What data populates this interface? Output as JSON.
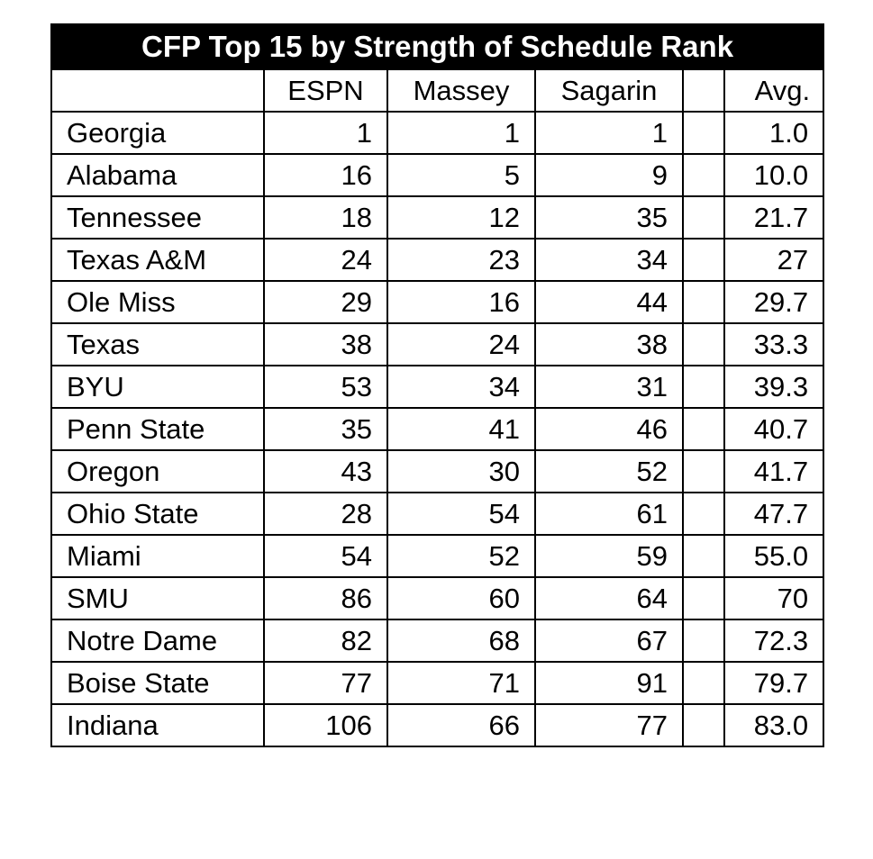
{
  "chart_data": {
    "type": "table",
    "title": "CFP Top 15 by Strength of Schedule Rank",
    "columns": [
      "",
      "ESPN",
      "Massey",
      "Sagarin",
      "",
      "Avg."
    ],
    "rows": [
      {
        "team": "Georgia",
        "espn": "1",
        "massey": "1",
        "sagarin": "1",
        "avg": "1.0"
      },
      {
        "team": "Alabama",
        "espn": "16",
        "massey": "5",
        "sagarin": "9",
        "avg": "10.0"
      },
      {
        "team": "Tennessee",
        "espn": "18",
        "massey": "12",
        "sagarin": "35",
        "avg": "21.7"
      },
      {
        "team": "Texas A&M",
        "espn": "24",
        "massey": "23",
        "sagarin": "34",
        "avg": "27"
      },
      {
        "team": "Ole Miss",
        "espn": "29",
        "massey": "16",
        "sagarin": "44",
        "avg": "29.7"
      },
      {
        "team": "Texas",
        "espn": "38",
        "massey": "24",
        "sagarin": "38",
        "avg": "33.3"
      },
      {
        "team": "BYU",
        "espn": "53",
        "massey": "34",
        "sagarin": "31",
        "avg": "39.3"
      },
      {
        "team": "Penn State",
        "espn": "35",
        "massey": "41",
        "sagarin": "46",
        "avg": "40.7"
      },
      {
        "team": "Oregon",
        "espn": "43",
        "massey": "30",
        "sagarin": "52",
        "avg": "41.7"
      },
      {
        "team": "Ohio State",
        "espn": "28",
        "massey": "54",
        "sagarin": "61",
        "avg": "47.7"
      },
      {
        "team": "Miami",
        "espn": "54",
        "massey": "52",
        "sagarin": "59",
        "avg": "55.0"
      },
      {
        "team": "SMU",
        "espn": "86",
        "massey": "60",
        "sagarin": "64",
        "avg": "70"
      },
      {
        "team": "Notre Dame",
        "espn": "82",
        "massey": "68",
        "sagarin": "67",
        "avg": "72.3"
      },
      {
        "team": "Boise State",
        "espn": "77",
        "massey": "71",
        "sagarin": "91",
        "avg": "79.7"
      },
      {
        "team": "Indiana",
        "espn": "106",
        "massey": "66",
        "sagarin": "77",
        "avg": "83.0"
      }
    ]
  }
}
